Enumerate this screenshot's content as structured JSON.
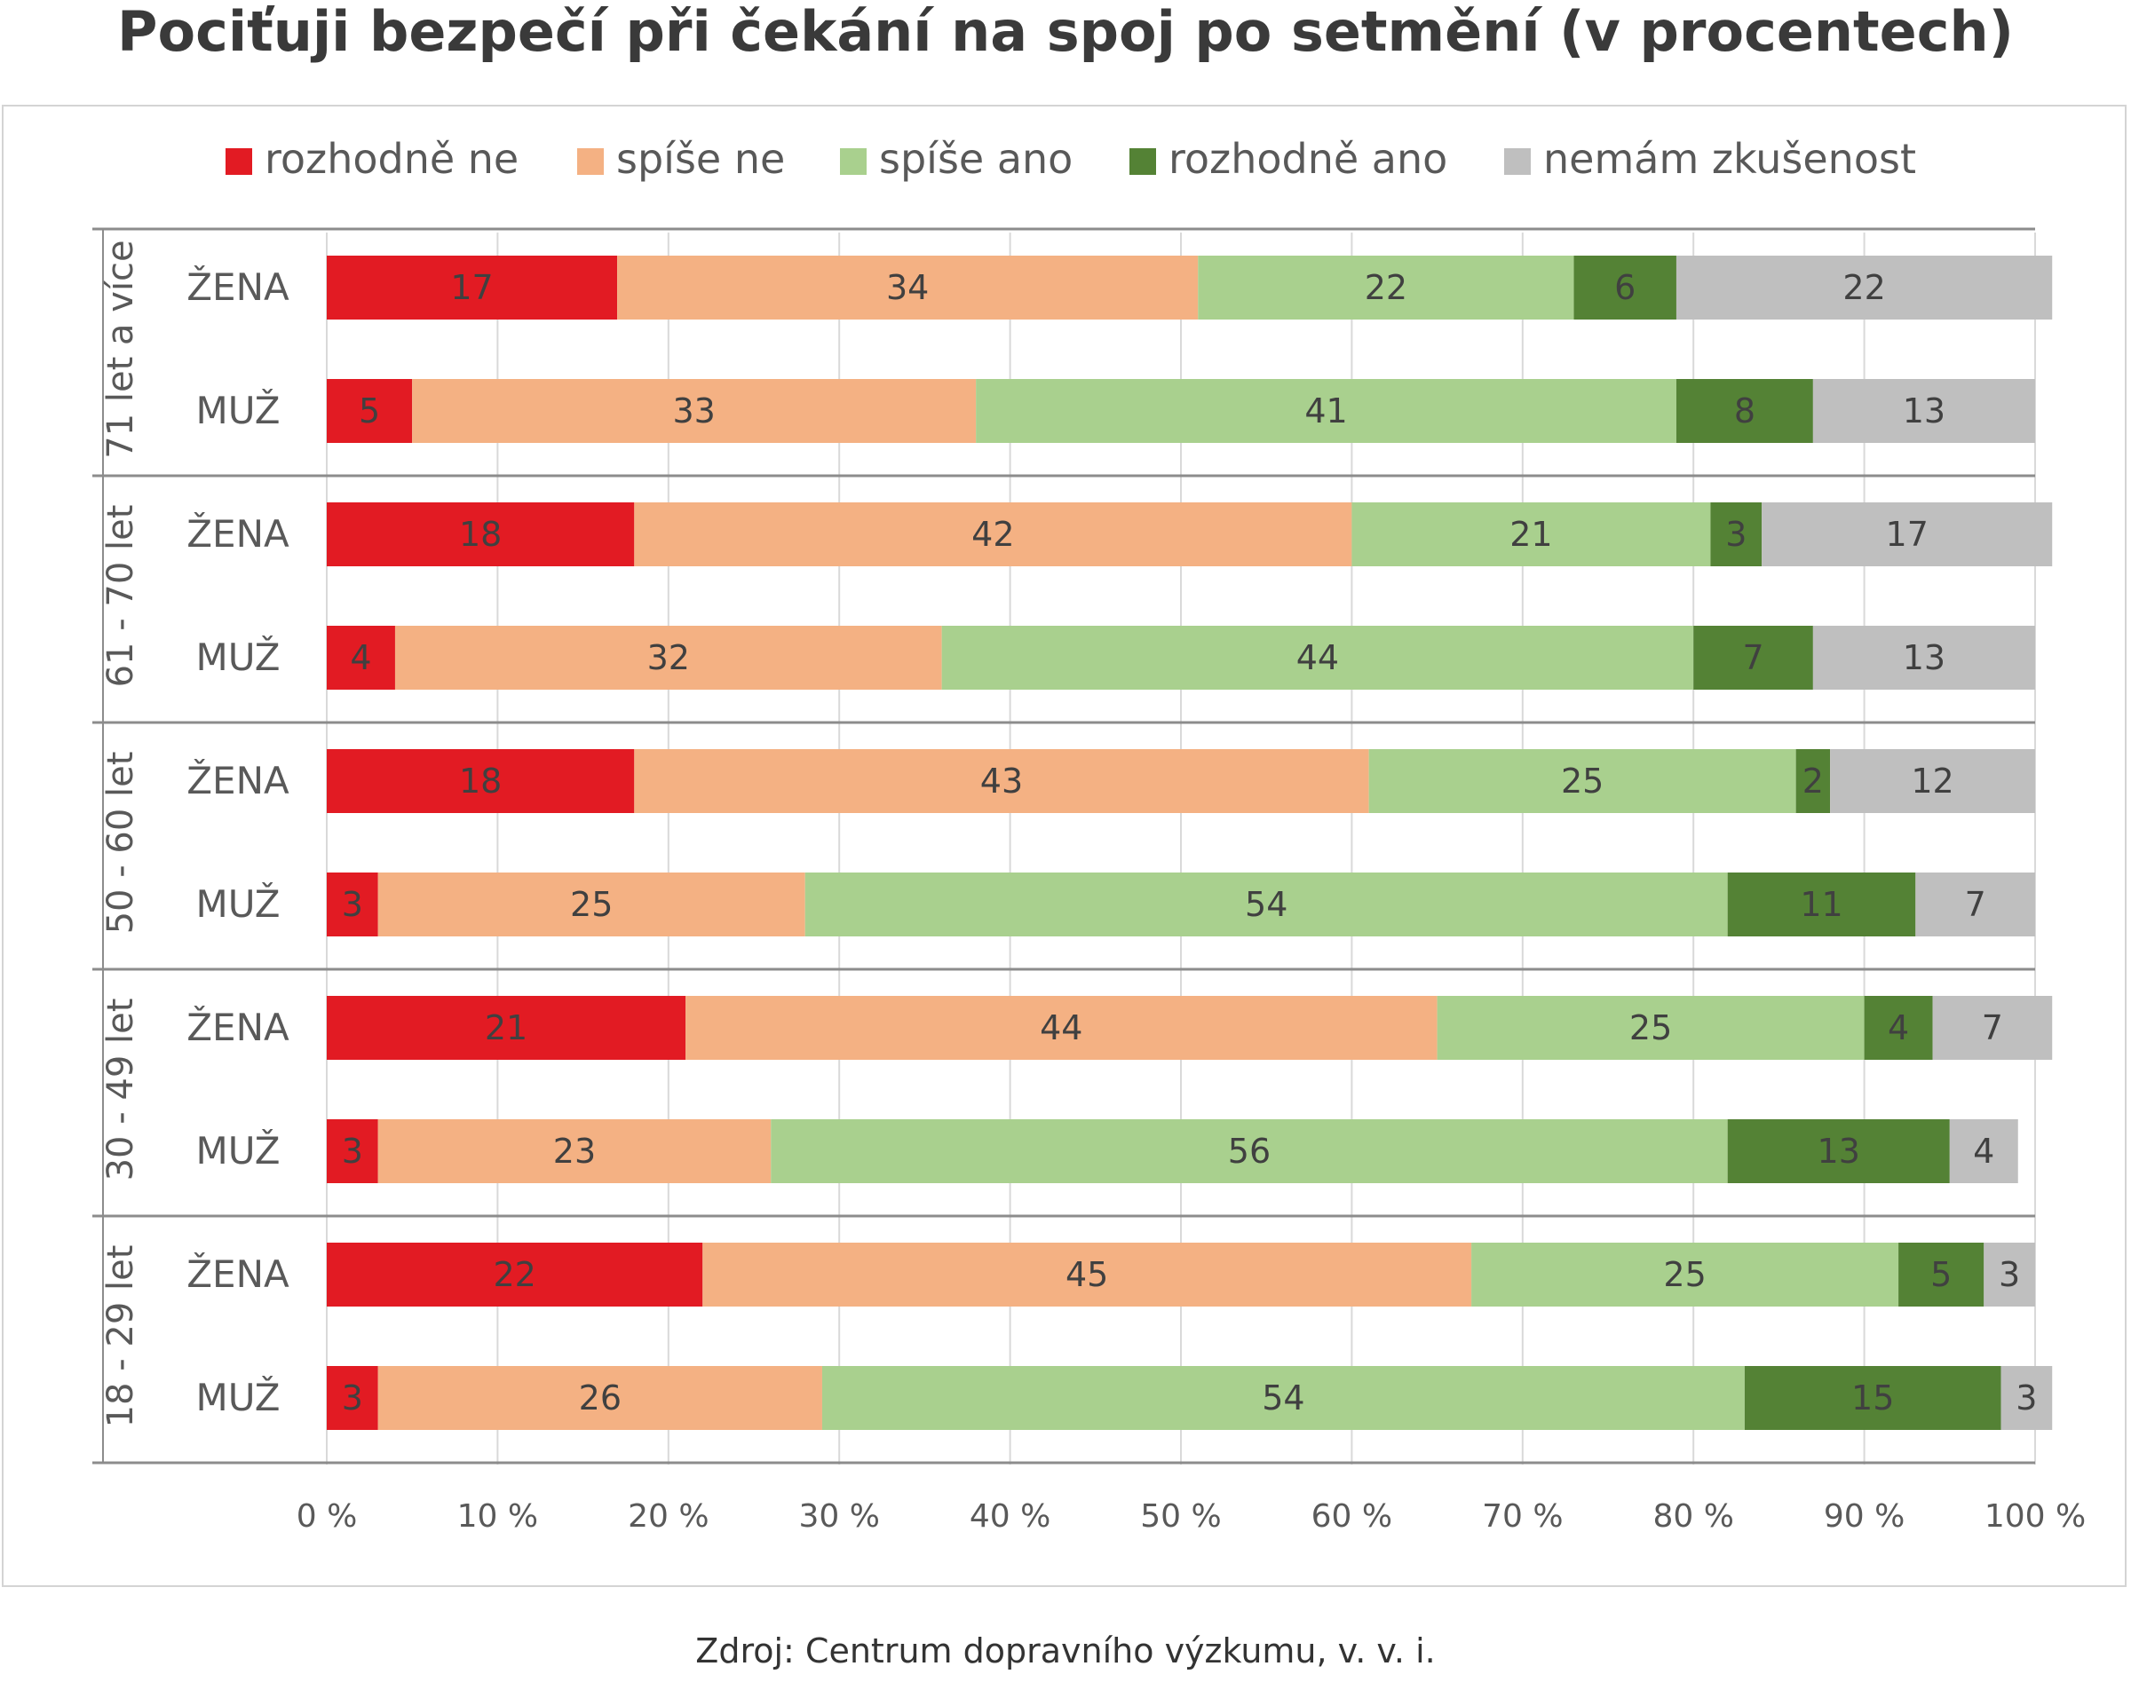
{
  "chart_data": {
    "type": "bar",
    "orientation": "horizontal",
    "stacked": true,
    "title": "Pociťuji bezpečí při čekání na spoj po setmění (v procentech)",
    "source": "Zdroj: Centrum dopravního výzkumu, v. v. i.",
    "legend_position": "top",
    "series": [
      {
        "name": "rozhodně ne",
        "color": "#e21b23"
      },
      {
        "name": "spíše ne",
        "color": "#f4b183"
      },
      {
        "name": "spíše ano",
        "color": "#a9d08e"
      },
      {
        "name": "rozhodně ano",
        "color": "#548235"
      },
      {
        "name": "nemám zkušenost",
        "color": "#bfbfbf"
      }
    ],
    "groups": [
      {
        "label": "71 let a více",
        "rows": [
          {
            "label": "ŽENA",
            "values": [
              17,
              34,
              22,
              6,
              22
            ]
          },
          {
            "label": "MUŽ",
            "values": [
              5,
              33,
              41,
              8,
              13
            ]
          }
        ]
      },
      {
        "label": "61 - 70 let",
        "rows": [
          {
            "label": "ŽENA",
            "values": [
              18,
              42,
              21,
              3,
              17
            ]
          },
          {
            "label": "MUŽ",
            "values": [
              4,
              32,
              44,
              7,
              13
            ]
          }
        ]
      },
      {
        "label": "50 - 60 let",
        "rows": [
          {
            "label": "ŽENA",
            "values": [
              18,
              43,
              25,
              2,
              12
            ]
          },
          {
            "label": "MUŽ",
            "values": [
              3,
              25,
              54,
              11,
              7
            ]
          }
        ]
      },
      {
        "label": "30 - 49 let",
        "rows": [
          {
            "label": "ŽENA",
            "values": [
              21,
              44,
              25,
              4,
              7
            ]
          },
          {
            "label": "MUŽ",
            "values": [
              3,
              23,
              56,
              13,
              4
            ]
          }
        ]
      },
      {
        "label": "18 - 29 let",
        "rows": [
          {
            "label": "ŽENA",
            "values": [
              22,
              45,
              25,
              5,
              3
            ]
          },
          {
            "label": "MUŽ",
            "values": [
              3,
              26,
              54,
              15,
              3
            ]
          }
        ]
      }
    ],
    "xlim": [
      0,
      100
    ],
    "x_ticks": [
      "0 %",
      "10 %",
      "20 %",
      "30 %",
      "40 %",
      "50 %",
      "60 %",
      "70 %",
      "80 %",
      "90 %",
      "100 %"
    ],
    "grid": true
  }
}
